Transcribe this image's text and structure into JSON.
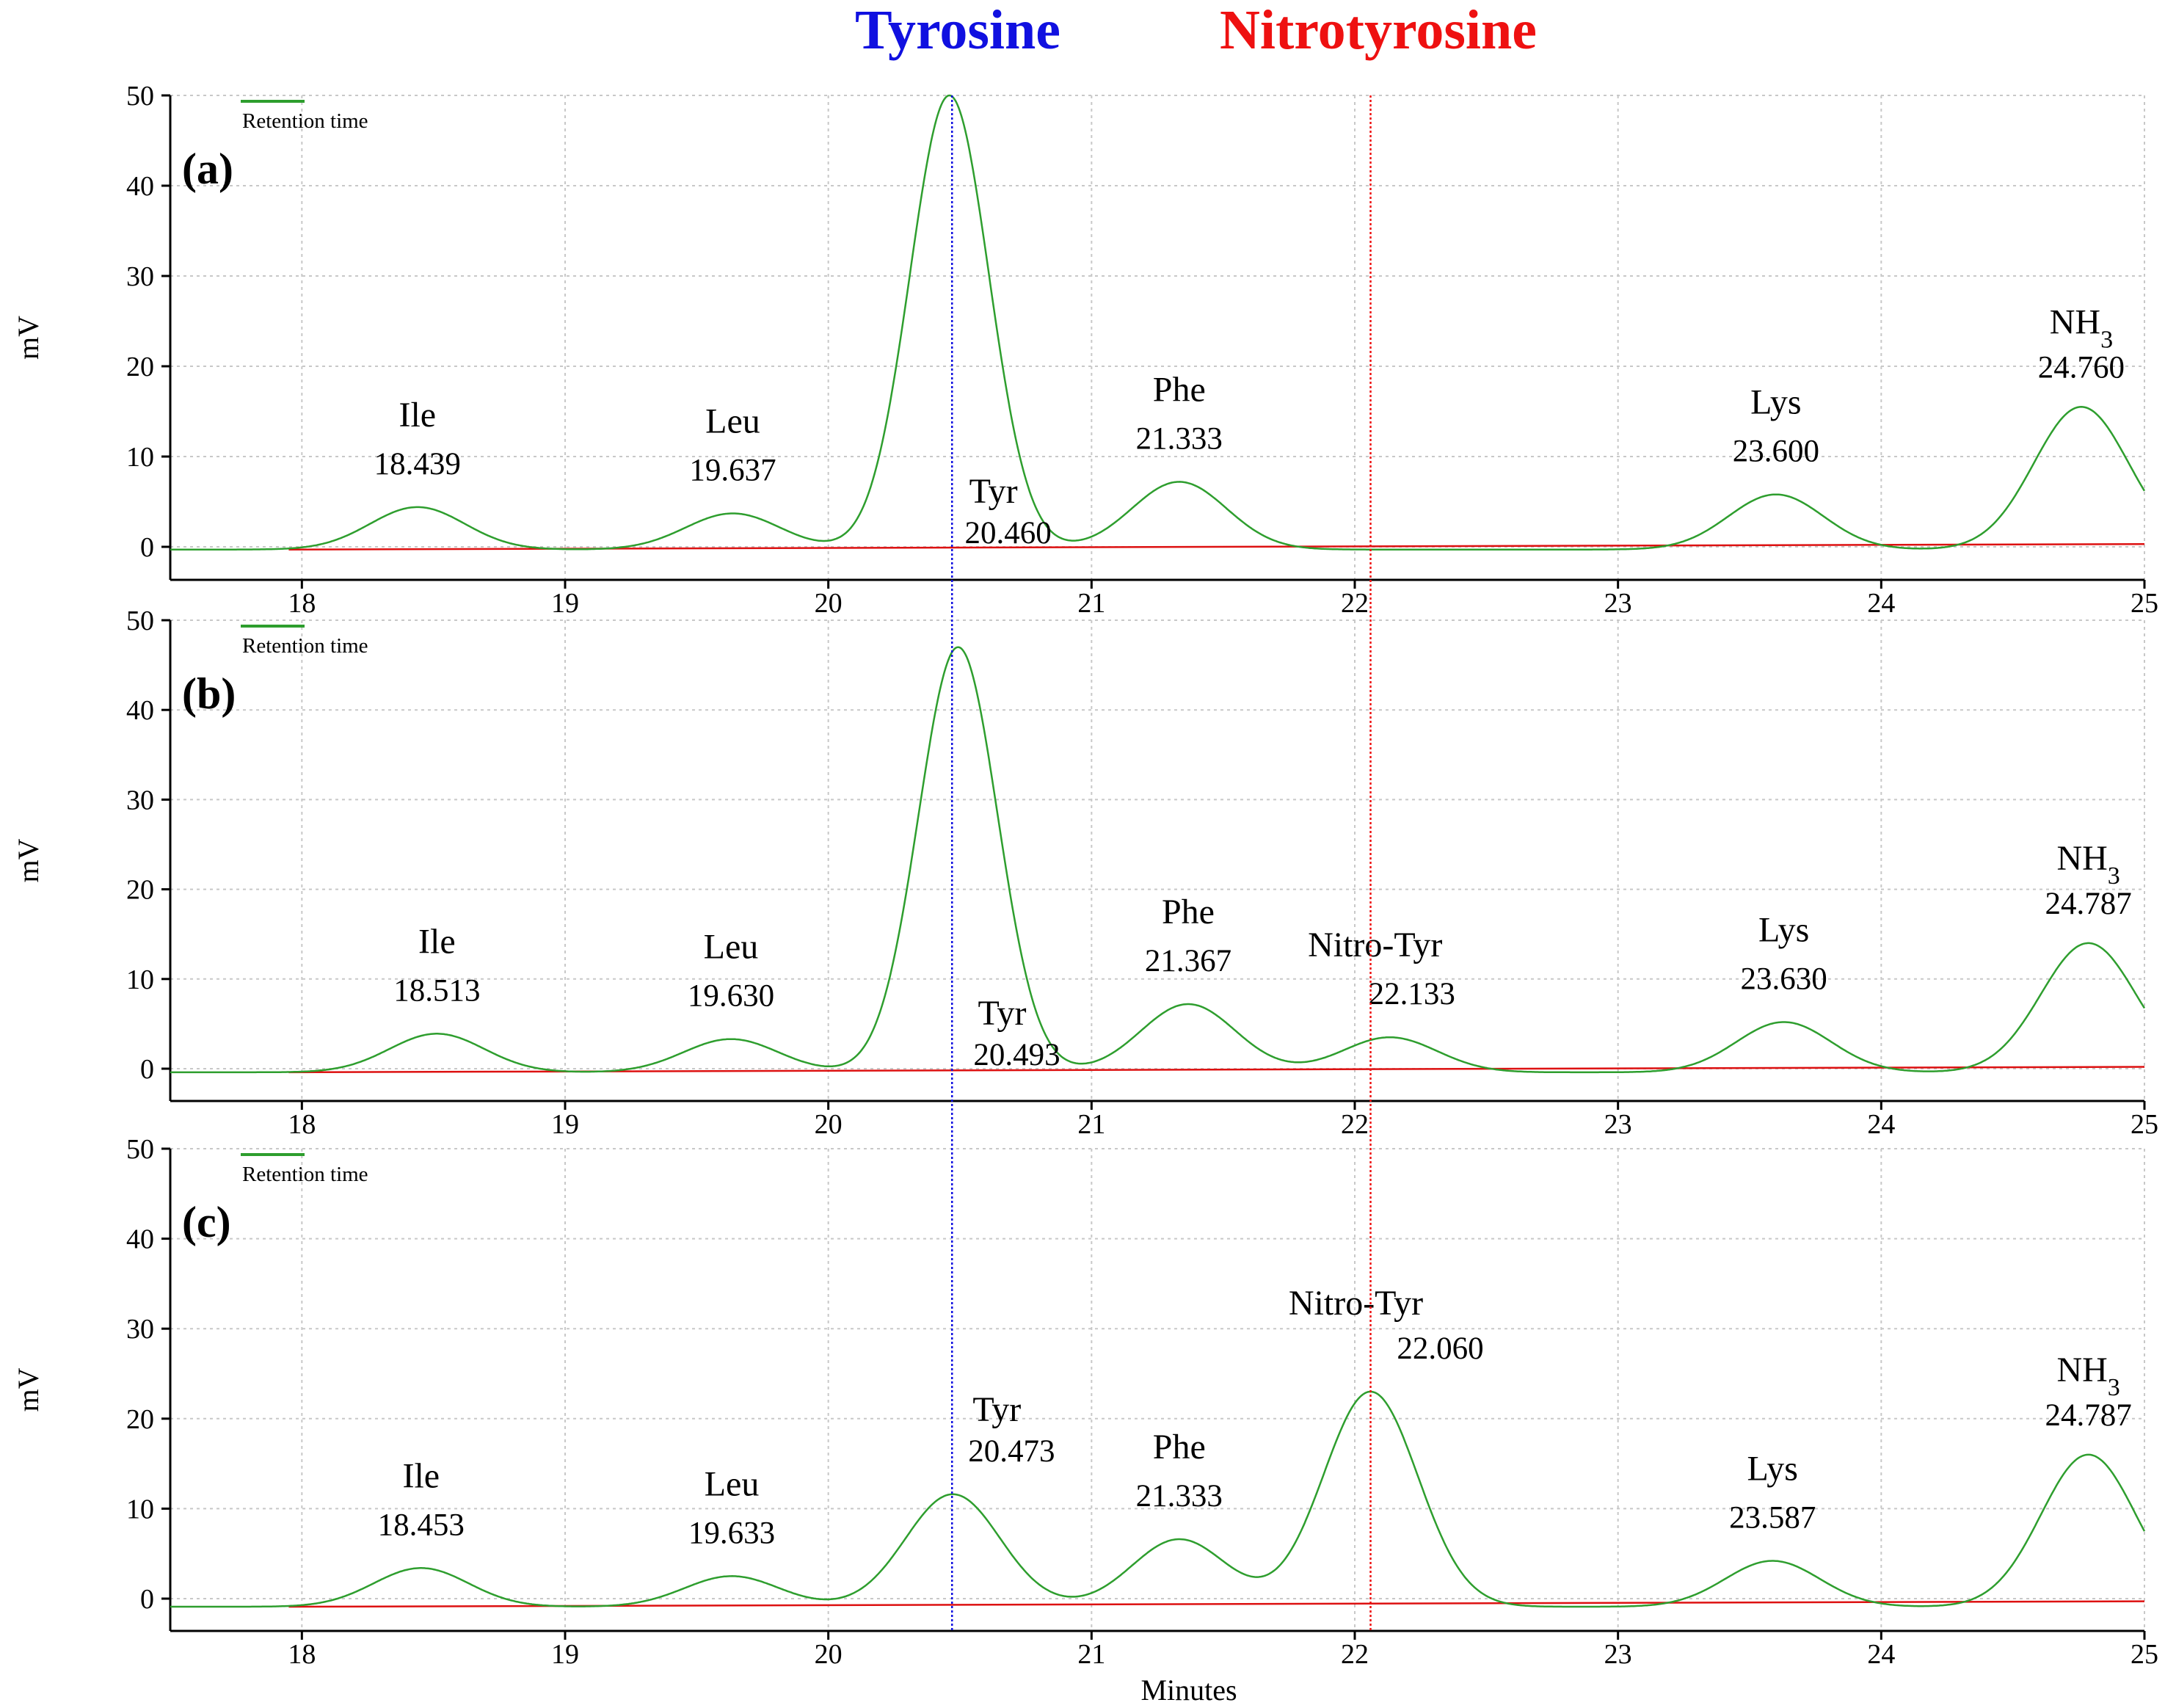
{
  "header": {
    "left_label": "Tyrosine",
    "left_color": "#1010e0",
    "right_label": "Nitrotyrosine",
    "right_color": "#ee1111"
  },
  "chart_data": {
    "type": "line",
    "xlabel": "Minutes",
    "ylabel": "mV",
    "xlim": [
      17.5,
      25
    ],
    "ylim": [
      -3,
      50
    ],
    "x_ticks": [
      18,
      19,
      20,
      21,
      22,
      23,
      24,
      25
    ],
    "y_ticks": [
      0,
      10,
      20,
      30,
      40,
      50
    ],
    "grid": true,
    "trace_color": "#2e9e2e",
    "baseline_color": "#dd1111",
    "reference_lines": [
      {
        "label": "Tyrosine",
        "x": 20.47,
        "color": "#1010e0"
      },
      {
        "label": "Nitrotyrosine",
        "x": 22.06,
        "color": "#ee1111"
      }
    ],
    "legend_label": "Retention time",
    "panels": [
      {
        "label": "(a)",
        "baseline": -0.3,
        "peaks": [
          {
            "name": "Ile",
            "time": "18.439",
            "rt": 18.439,
            "height": 4.4
          },
          {
            "name": "Leu",
            "time": "19.637",
            "rt": 19.637,
            "height": 3.7
          },
          {
            "name": "Tyr",
            "time": "20.460",
            "rt": 20.46,
            "height": 50.0
          },
          {
            "name": "Phe",
            "time": "21.333",
            "rt": 21.333,
            "height": 7.2
          },
          {
            "name": "Lys",
            "time": "23.600",
            "rt": 23.6,
            "height": 5.8
          },
          {
            "name": "NH3",
            "time": "24.760",
            "rt": 24.76,
            "height": 15.5
          }
        ]
      },
      {
        "label": "(b)",
        "baseline": -0.4,
        "peaks": [
          {
            "name": "Ile",
            "time": "18.513",
            "rt": 18.513,
            "height": 3.9
          },
          {
            "name": "Leu",
            "time": "19.630",
            "rt": 19.63,
            "height": 3.3
          },
          {
            "name": "Tyr",
            "time": "20.493",
            "rt": 20.493,
            "height": 47.0
          },
          {
            "name": "Phe",
            "time": "21.367",
            "rt": 21.367,
            "height": 7.2
          },
          {
            "name": "Nitro-Tyr",
            "time": "22.133",
            "rt": 22.133,
            "height": 3.5
          },
          {
            "name": "Lys",
            "time": "23.630",
            "rt": 23.63,
            "height": 5.2
          },
          {
            "name": "NH3",
            "time": "24.787",
            "rt": 24.787,
            "height": 14.0
          }
        ]
      },
      {
        "label": "(c)",
        "baseline": -0.9,
        "peaks": [
          {
            "name": "Ile",
            "time": "18.453",
            "rt": 18.453,
            "height": 3.4
          },
          {
            "name": "Leu",
            "time": "19.633",
            "rt": 19.633,
            "height": 2.5
          },
          {
            "name": "Tyr",
            "time": "20.473",
            "rt": 20.473,
            "height": 11.6
          },
          {
            "name": "Phe",
            "time": "21.333",
            "rt": 21.333,
            "height": 6.6
          },
          {
            "name": "Nitro-Tyr",
            "time": "22.060",
            "rt": 22.06,
            "height": 23.0
          },
          {
            "name": "Lys",
            "time": "23.587",
            "rt": 23.587,
            "height": 4.2
          },
          {
            "name": "NH3",
            "time": "24.787",
            "rt": 24.787,
            "height": 16.0
          }
        ]
      }
    ]
  }
}
